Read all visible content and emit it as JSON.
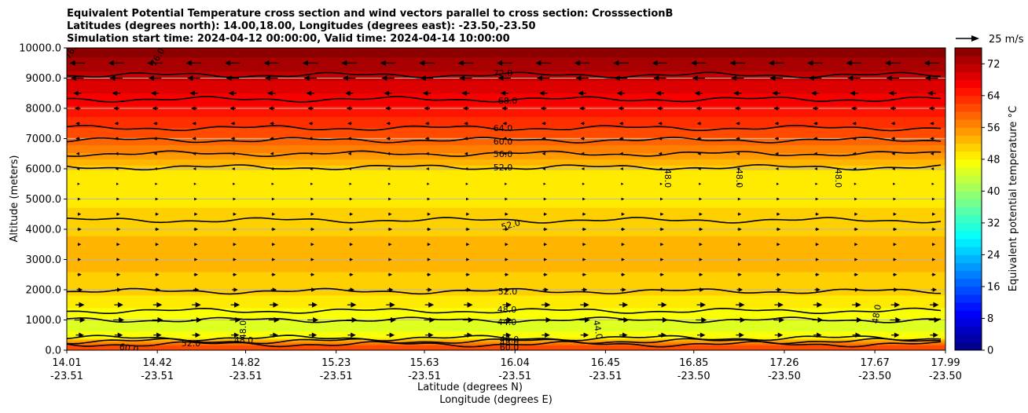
{
  "chart_data": {
    "type": "heatmap",
    "subtype": "filled-contour cross section with wind vectors",
    "title_lines": [
      "Equivalent Potential Temperature cross section and wind vectors parallel to cross section: CrosssectionB",
      "Latitudes (degrees north): 14.00,18.00, Longitudes (degrees east): -23.50,-23.50",
      "Simulation start time: 2024-04-12 00:00:00, Valid time: 2024-04-14 10:00:00"
    ],
    "ylabel": "Altitude (meters)",
    "xlabel_lat": "Latitude (degrees N)",
    "xlabel_lon": "Longitude (degrees E)",
    "ylim": [
      0,
      10000
    ],
    "xlim": [
      14.01,
      17.99
    ],
    "yticks": [
      0,
      1000,
      2000,
      3000,
      4000,
      5000,
      6000,
      7000,
      8000,
      9000,
      10000
    ],
    "ytick_labels": [
      "0.0",
      "1000.0",
      "2000.0",
      "3000.0",
      "4000.0",
      "5000.0",
      "6000.0",
      "7000.0",
      "8000.0",
      "9000.0",
      "10000.0"
    ],
    "xticks_lat": [
      14.01,
      14.42,
      14.82,
      15.23,
      15.63,
      16.04,
      16.45,
      16.85,
      17.26,
      17.67,
      17.99
    ],
    "xtick_lat_labels": [
      "14.01",
      "14.42",
      "14.82",
      "15.23",
      "15.63",
      "16.04",
      "16.45",
      "16.85",
      "17.26",
      "17.67",
      "17.99"
    ],
    "xtick_lon_labels": [
      "-23.51",
      "-23.51",
      "-23.51",
      "-23.51",
      "-23.51",
      "-23.51",
      "-23.51",
      "-23.50",
      "-23.50",
      "-23.50",
      "-23.50"
    ],
    "colorbar": {
      "label": "Equivalent potential temperature $^\\circ$C",
      "label_text": "Equivalent potential temperature °C",
      "min": 0,
      "max": 76,
      "step": 2,
      "ticks": [
        0,
        8,
        16,
        24,
        32,
        40,
        48,
        56,
        64,
        72
      ],
      "tick_labels": [
        "0",
        "8",
        "16",
        "24",
        "32",
        "40",
        "48",
        "56",
        "64",
        "72"
      ]
    },
    "quiver_key": {
      "label": "25 m/s",
      "speed": 25
    },
    "field_profile": {
      "altitude_m": [
        0,
        150,
        300,
        450,
        800,
        1200,
        1600,
        2000,
        2600,
        3200,
        3800,
        4400,
        5000,
        5500,
        5900,
        6100,
        6400,
        6800,
        7200,
        7700,
        8300,
        8900,
        9400,
        10000
      ],
      "theta_e_C": [
        62,
        60,
        54,
        47,
        45,
        47,
        49,
        51,
        52,
        53,
        52,
        51,
        49,
        48,
        49,
        52,
        55,
        58,
        61,
        64,
        67,
        70,
        73,
        75
      ]
    },
    "contour_lines": [
      {
        "label": "60.0",
        "altitude_m": 200
      },
      {
        "label": "52.0",
        "altitude_m": 300
      },
      {
        "label": "48.0",
        "altitude_m": 400
      },
      {
        "label": "44.0",
        "altitude_m": 1000
      },
      {
        "label": "48.0",
        "altitude_m": 1300
      },
      {
        "label": "52.0",
        "altitude_m": 1950
      },
      {
        "label": "52.0",
        "altitude_m": 4300
      },
      {
        "label": "52.0",
        "altitude_m": 6050
      },
      {
        "label": "56.0",
        "altitude_m": 6500
      },
      {
        "label": "60.0",
        "altitude_m": 6950
      },
      {
        "label": "64.0",
        "altitude_m": 7350
      },
      {
        "label": "68.0",
        "altitude_m": 8300
      },
      {
        "label": "72.0",
        "altitude_m": 9100
      }
    ],
    "contour_labels_shown": [
      "72.0",
      "68.0",
      "64.0",
      "60.0",
      "56.0",
      "52.0",
      "48.0",
      "48.0",
      "48.0",
      "52.0",
      "52.0",
      "48.0",
      "44.0",
      "48.0",
      "48.0",
      "44.0",
      "52.0",
      "60.0",
      "48.0",
      "60.0",
      "44.0",
      "48.0",
      "76.0",
      "76.0"
    ],
    "wind_rows": [
      {
        "altitude_m": 9500,
        "u_ms": -20
      },
      {
        "altitude_m": 9000,
        "u_ms": -16
      },
      {
        "altitude_m": 8500,
        "u_ms": -9
      },
      {
        "altitude_m": 8000,
        "u_ms": -6
      },
      {
        "altitude_m": 7500,
        "u_ms": -4
      },
      {
        "altitude_m": 7000,
        "u_ms": -4
      },
      {
        "altitude_m": 6500,
        "u_ms": -3
      },
      {
        "altitude_m": 6000,
        "u_ms": -2
      },
      {
        "altitude_m": 5500,
        "u_ms": 0.5
      },
      {
        "altitude_m": 5000,
        "u_ms": 2
      },
      {
        "altitude_m": 4500,
        "u_ms": 3
      },
      {
        "altitude_m": 4000,
        "u_ms": 4
      },
      {
        "altitude_m": 3500,
        "u_ms": 3
      },
      {
        "altitude_m": 3000,
        "u_ms": 3
      },
      {
        "altitude_m": 2500,
        "u_ms": 4
      },
      {
        "altitude_m": 2000,
        "u_ms": 6
      },
      {
        "altitude_m": 1500,
        "u_ms": 10
      },
      {
        "altitude_m": 1000,
        "u_ms": 13
      },
      {
        "altitude_m": 500,
        "u_ms": 9
      }
    ],
    "grid": "horizontal",
    "legend_placement": "top-right"
  }
}
